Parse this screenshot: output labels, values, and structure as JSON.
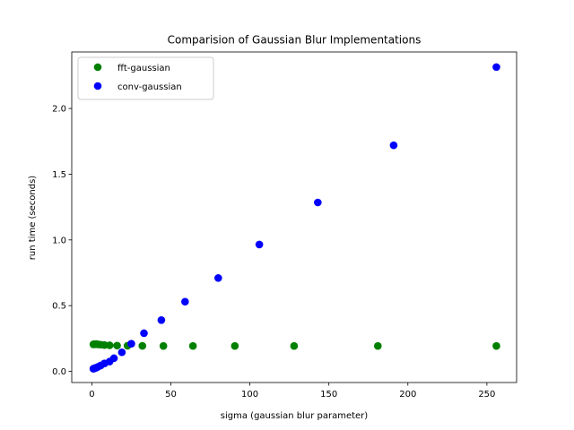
{
  "chart_data": {
    "type": "scatter",
    "title": "Comparision of Gaussian Blur Implementations",
    "xlabel": "sigma (gaussian blur parameter)",
    "ylabel": "run time (seconds)",
    "xlim": [
      -12.7,
      268.8
    ],
    "ylim": [
      -0.085,
      2.43
    ],
    "xticks": [
      0,
      50,
      100,
      150,
      200,
      250
    ],
    "yticks": [
      0.0,
      0.5,
      1.0,
      1.5,
      2.0
    ],
    "xtick_labels": [
      "0",
      "50",
      "100",
      "150",
      "200",
      "250"
    ],
    "ytick_labels": [
      "0.0",
      "0.5",
      "1.0",
      "1.5",
      "2.0"
    ],
    "grid": false,
    "legend_position": "top-left",
    "series": [
      {
        "name": "fft-gaussian",
        "color": "#008000",
        "x": [
          1.0,
          1.41,
          2.0,
          2.83,
          4.0,
          5.66,
          8.0,
          11.3,
          16.0,
          22.6,
          32.0,
          45.3,
          64.0,
          90.5,
          128.0,
          181.0,
          256.0
        ],
        "y": [
          0.205,
          0.207,
          0.206,
          0.208,
          0.205,
          0.203,
          0.2,
          0.198,
          0.196,
          0.195,
          0.194,
          0.193,
          0.193,
          0.193,
          0.193,
          0.193,
          0.193
        ],
        "x_extra_note": ""
      },
      {
        "name": "conv-gaussian",
        "color": "#0000ff",
        "x": [
          1.0,
          1.41,
          2.0,
          2.83,
          4.0,
          5.66,
          8.0,
          11.3,
          14.0,
          19.0,
          25.0,
          33.0,
          44.0,
          59.0,
          80.0,
          106.0,
          143.0,
          191.0,
          256.0
        ],
        "y": [
          0.02,
          0.022,
          0.025,
          0.028,
          0.035,
          0.045,
          0.06,
          0.075,
          0.1,
          0.145,
          0.21,
          0.29,
          0.39,
          0.53,
          0.71,
          0.965,
          1.285,
          1.72,
          2.315
        ]
      }
    ]
  }
}
